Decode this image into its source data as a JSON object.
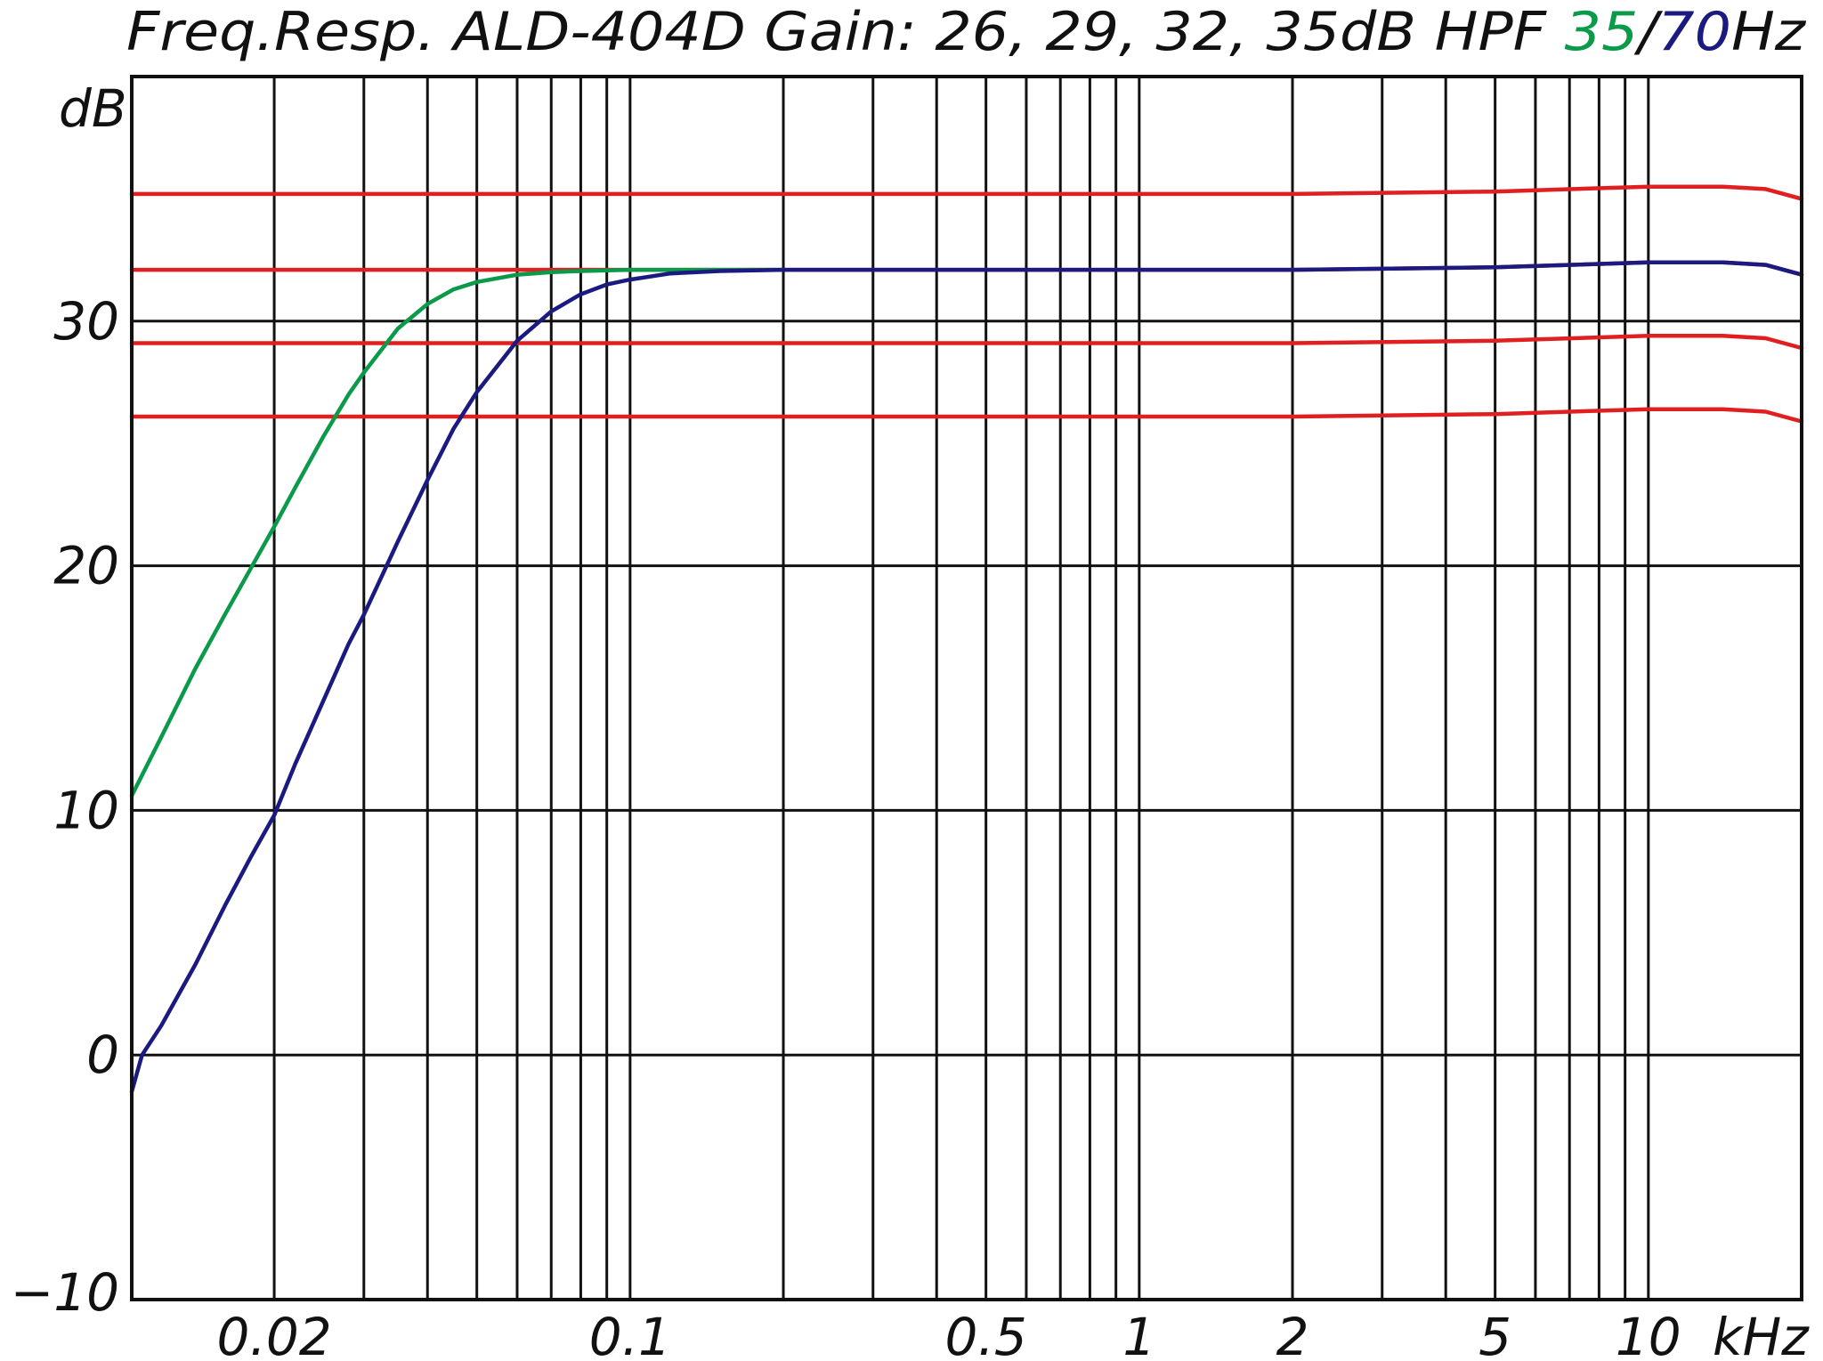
{
  "chart_data": {
    "type": "line",
    "title_parts": [
      {
        "text": "Freq.Resp. ALD-404D Gain: 26, 29, 32, 35dB HPF ",
        "color": "#111111"
      },
      {
        "text": "35",
        "color": "#0a9a4a"
      },
      {
        "text": "/",
        "color": "#111111"
      },
      {
        "text": "70",
        "color": "#1a1a80"
      },
      {
        "text": "Hz",
        "color": "#111111"
      }
    ],
    "ylabel": "dB",
    "xunit": "kHz",
    "xscale": "log",
    "xlim": [
      0.0105,
      20
    ],
    "ylim": [
      -10,
      40
    ],
    "yticks": [
      {
        "value": -10,
        "label": "−10"
      },
      {
        "value": 0,
        "label": "0"
      },
      {
        "value": 10,
        "label": "10"
      },
      {
        "value": 20,
        "label": "20"
      },
      {
        "value": 30,
        "label": "30"
      }
    ],
    "xtick_labels": [
      {
        "value": 0.02,
        "label": "0.02"
      },
      {
        "value": 0.1,
        "label": "0.1"
      },
      {
        "value": 0.5,
        "label": "0.5"
      },
      {
        "value": 1,
        "label": "1"
      },
      {
        "value": 2,
        "label": "2"
      },
      {
        "value": 5,
        "label": "5"
      },
      {
        "value": 10,
        "label": "10"
      }
    ],
    "xgrid": [
      0.02,
      0.03,
      0.04,
      0.05,
      0.06,
      0.07,
      0.08,
      0.09,
      0.1,
      0.2,
      0.3,
      0.4,
      0.5,
      0.6,
      0.7,
      0.8,
      0.9,
      1,
      2,
      3,
      4,
      5,
      6,
      7,
      8,
      9,
      10
    ],
    "grid": true,
    "series": [
      {
        "color": "#e02020",
        "x": [
          0.0105,
          0.05,
          0.2,
          1,
          2,
          5,
          10,
          14,
          17,
          20
        ],
        "y": [
          35.2,
          35.2,
          35.2,
          35.2,
          35.2,
          35.3,
          35.5,
          35.5,
          35.4,
          35.0
        ]
      },
      {
        "color": "#e02020",
        "x": [
          0.0105,
          0.05,
          0.2,
          1,
          2,
          5,
          10,
          14,
          17,
          20
        ],
        "y": [
          32.1,
          32.1,
          32.1,
          32.1,
          32.1,
          32.2,
          32.4,
          32.4,
          32.3,
          31.9
        ]
      },
      {
        "color": "#e02020",
        "x": [
          0.0105,
          0.05,
          0.2,
          1,
          2,
          5,
          10,
          14,
          17,
          20
        ],
        "y": [
          29.1,
          29.1,
          29.1,
          29.1,
          29.1,
          29.2,
          29.4,
          29.4,
          29.3,
          28.9
        ]
      },
      {
        "color": "#e02020",
        "x": [
          0.0105,
          0.05,
          0.2,
          1,
          2,
          5,
          10,
          14,
          17,
          20
        ],
        "y": [
          26.1,
          26.1,
          26.1,
          26.1,
          26.1,
          26.2,
          26.4,
          26.4,
          26.3,
          25.9
        ]
      },
      {
        "color": "#0a9a4a",
        "x": [
          0.0105,
          0.012,
          0.014,
          0.016,
          0.018,
          0.02,
          0.022,
          0.025,
          0.028,
          0.03,
          0.035,
          0.04,
          0.045,
          0.05,
          0.06,
          0.07,
          0.08,
          0.1,
          0.15,
          0.2
        ],
        "y": [
          10.6,
          13.0,
          15.8,
          18.0,
          19.9,
          21.6,
          23.2,
          25.3,
          27.0,
          27.9,
          29.7,
          30.7,
          31.3,
          31.6,
          31.9,
          32.0,
          32.05,
          32.1,
          32.1,
          32.1
        ]
      },
      {
        "color": "#1a1a80",
        "x": [
          0.0105,
          0.011,
          0.012,
          0.014,
          0.016,
          0.018,
          0.02,
          0.022,
          0.025,
          0.028,
          0.03,
          0.035,
          0.04,
          0.045,
          0.05,
          0.06,
          0.07,
          0.08,
          0.09,
          0.1,
          0.12,
          0.15,
          0.2,
          0.3,
          0.5,
          1,
          2,
          5,
          10,
          14,
          17,
          20
        ],
        "y": [
          -1.5,
          0.0,
          1.2,
          3.7,
          6.1,
          8.1,
          9.8,
          11.9,
          14.5,
          16.8,
          18.0,
          21.0,
          23.5,
          25.6,
          27.1,
          29.2,
          30.4,
          31.1,
          31.5,
          31.7,
          31.95,
          32.05,
          32.1,
          32.1,
          32.1,
          32.1,
          32.1,
          32.2,
          32.4,
          32.4,
          32.3,
          31.9
        ]
      }
    ]
  }
}
